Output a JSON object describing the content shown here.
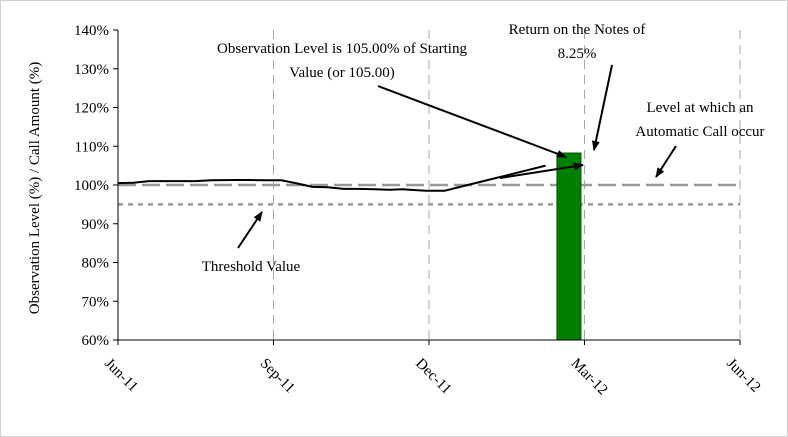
{
  "chart_data": {
    "type": "line",
    "title": "",
    "ylabel": "Observation Level (%) / Call Amount (%)",
    "xlabel": "",
    "ylim": [
      60,
      140
    ],
    "y_ticks": [
      "60%",
      "70%",
      "80%",
      "90%",
      "100%",
      "110%",
      "120%",
      "130%",
      "140%"
    ],
    "x_ticks": [
      "Jun-11",
      "Sep-11",
      "Dec-11",
      "Mar-12",
      "Jun-12"
    ],
    "grid": "vertical-dashed",
    "colors": {
      "observation_line": "#000000",
      "call_level_line": "#999999",
      "threshold_line": "#999999",
      "return_bar": "#008000",
      "return_bar_edge": "#005000"
    },
    "series": [
      {
        "type": "line",
        "x": [
          0,
          0.1,
          0.2,
          0.35,
          0.5,
          0.6,
          0.75,
          0.85,
          0.95,
          1.05,
          1.15,
          1.25,
          1.35,
          1.45,
          1.55,
          1.65,
          1.75,
          1.83,
          1.9,
          1.98,
          2.1,
          2.2,
          2.35,
          2.5,
          2.62,
          2.75
        ],
        "values": [
          100.5,
          100.6,
          101.0,
          101.0,
          101.0,
          101.2,
          101.3,
          101.3,
          101.2,
          101.2,
          100.4,
          99.5,
          99.4,
          99.0,
          99.0,
          98.9,
          98.8,
          98.9,
          98.7,
          98.5,
          98.5,
          99.5,
          101.0,
          102.5,
          103.7,
          105.0
        ]
      },
      {
        "type": "hline",
        "y": 100,
        "style": "dashed"
      },
      {
        "type": "hline",
        "y": 95,
        "style": "dotted"
      },
      {
        "type": "bar",
        "x": 2.9,
        "value": 108.25
      }
    ],
    "annotations": {
      "observation": {
        "lines": [
          "Observation Level is 105.00% of Starting",
          "Value (or 105.00)"
        ]
      },
      "return": {
        "lines": [
          "Return on the Notes of",
          "8.25%"
        ]
      },
      "call_level": {
        "lines": [
          "Level at which an",
          "Automatic Call occur"
        ]
      },
      "threshold": {
        "lines": [
          "Threshold Value"
        ]
      }
    }
  }
}
